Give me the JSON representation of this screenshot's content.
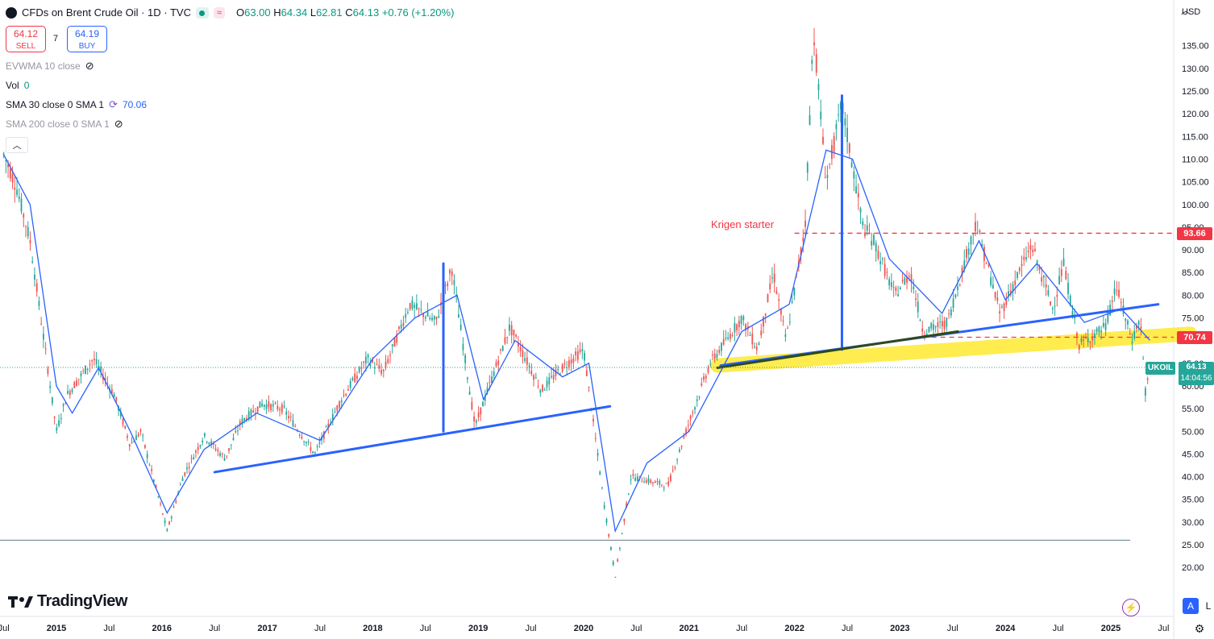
{
  "header": {
    "symbol_title": "CFDs on Brent Crude Oil · 1D · TVC",
    "ohlc": {
      "o_label": "O",
      "o": "63.00",
      "h_label": "H",
      "h": "64.34",
      "l_label": "L",
      "l": "62.81",
      "c_label": "C",
      "c": "64.13",
      "change": "+0.76 (+1.20%)"
    },
    "sell_price": "64.12",
    "sell_label": "SELL",
    "spread": "7",
    "buy_price": "64.19",
    "buy_label": "BUY"
  },
  "indicators": {
    "evwma": "EVWMA 10 close",
    "vol_label": "Vol",
    "vol_value": "0",
    "sma30": "SMA 30 close 0 SMA 1",
    "sma30_value": "70.06",
    "sma200": "SMA 200 close 0 SMA 1"
  },
  "currency": "USD",
  "annotation_text": "Krigen starter",
  "price_tags": {
    "resistance": "93.66",
    "support": "70.74",
    "symbol": "UKOIL",
    "last": "64.13",
    "countdown": "14:04:56"
  },
  "brand": "TradingView",
  "bottom_buttons": {
    "auto": "A",
    "log": "L"
  },
  "colors": {
    "up": "#26a69a",
    "down": "#ef5350",
    "sma": "#2962ff",
    "trend": "#2962ff",
    "highlight": "#ffeb3b",
    "dashed": "#f23645",
    "accent_red": "#f23645",
    "accent_blue": "#2962ff"
  },
  "chart_data": {
    "type": "candlestick",
    "title": "CFDs on Brent Crude Oil · 1D · TVC",
    "y_axis": {
      "side": "right",
      "unit": "USD",
      "range": [
        15,
        140
      ],
      "ticks": [
        20,
        25,
        30,
        35,
        40,
        45,
        50,
        55,
        60,
        65,
        70,
        75,
        80,
        85,
        90,
        95,
        100,
        105,
        110,
        115,
        120,
        125,
        130,
        135
      ]
    },
    "x_axis": {
      "range": [
        "2014-06",
        "2025-08"
      ],
      "ticks": [
        "Jul",
        "2015",
        "Jul",
        "2016",
        "Jul",
        "2017",
        "Jul",
        "2018",
        "Jul",
        "2019",
        "Jul",
        "2020",
        "Jul",
        "2021",
        "Jul",
        "2022",
        "Jul",
        "2023",
        "Jul",
        "2024",
        "Jul",
        "2025",
        "Jul"
      ]
    },
    "price_series": [
      {
        "t": 2014.5,
        "v": 111
      },
      {
        "t": 2014.62,
        "v": 104
      },
      {
        "t": 2014.75,
        "v": 92
      },
      {
        "t": 2014.87,
        "v": 72
      },
      {
        "t": 2015.0,
        "v": 50
      },
      {
        "t": 2015.1,
        "v": 58
      },
      {
        "t": 2015.35,
        "v": 66
      },
      {
        "t": 2015.55,
        "v": 58
      },
      {
        "t": 2015.7,
        "v": 47
      },
      {
        "t": 2015.8,
        "v": 50
      },
      {
        "t": 2015.95,
        "v": 37
      },
      {
        "t": 2016.05,
        "v": 28
      },
      {
        "t": 2016.2,
        "v": 40
      },
      {
        "t": 2016.4,
        "v": 49
      },
      {
        "t": 2016.6,
        "v": 44
      },
      {
        "t": 2016.75,
        "v": 52
      },
      {
        "t": 2016.95,
        "v": 56
      },
      {
        "t": 2017.15,
        "v": 55
      },
      {
        "t": 2017.45,
        "v": 45
      },
      {
        "t": 2017.7,
        "v": 57
      },
      {
        "t": 2017.95,
        "v": 66
      },
      {
        "t": 2018.1,
        "v": 63
      },
      {
        "t": 2018.35,
        "v": 78
      },
      {
        "t": 2018.6,
        "v": 74
      },
      {
        "t": 2018.75,
        "v": 86
      },
      {
        "t": 2018.97,
        "v": 51
      },
      {
        "t": 2019.3,
        "v": 73
      },
      {
        "t": 2019.6,
        "v": 59
      },
      {
        "t": 2019.75,
        "v": 63
      },
      {
        "t": 2020.0,
        "v": 68
      },
      {
        "t": 2020.2,
        "v": 33
      },
      {
        "t": 2020.3,
        "v": 18
      },
      {
        "t": 2020.45,
        "v": 40
      },
      {
        "t": 2020.8,
        "v": 38
      },
      {
        "t": 2021.0,
        "v": 52
      },
      {
        "t": 2021.2,
        "v": 65
      },
      {
        "t": 2021.5,
        "v": 75
      },
      {
        "t": 2021.65,
        "v": 68
      },
      {
        "t": 2021.8,
        "v": 85
      },
      {
        "t": 2021.92,
        "v": 70
      },
      {
        "t": 2022.1,
        "v": 95
      },
      {
        "t": 2022.18,
        "v": 139
      },
      {
        "t": 2022.3,
        "v": 105
      },
      {
        "t": 2022.45,
        "v": 122
      },
      {
        "t": 2022.65,
        "v": 95
      },
      {
        "t": 2022.75,
        "v": 92
      },
      {
        "t": 2022.95,
        "v": 80
      },
      {
        "t": 2023.1,
        "v": 85
      },
      {
        "t": 2023.22,
        "v": 72
      },
      {
        "t": 2023.45,
        "v": 74
      },
      {
        "t": 2023.72,
        "v": 96
      },
      {
        "t": 2023.95,
        "v": 76
      },
      {
        "t": 2024.25,
        "v": 91
      },
      {
        "t": 2024.45,
        "v": 77
      },
      {
        "t": 2024.55,
        "v": 87
      },
      {
        "t": 2024.7,
        "v": 69
      },
      {
        "t": 2024.95,
        "v": 73
      },
      {
        "t": 2025.05,
        "v": 82
      },
      {
        "t": 2025.2,
        "v": 70
      },
      {
        "t": 2025.28,
        "v": 75
      },
      {
        "t": 2025.33,
        "v": 58
      },
      {
        "t": 2025.37,
        "v": 64.13
      }
    ],
    "sma30_series": [
      {
        "t": 2014.5,
        "v": 111
      },
      {
        "t": 2014.75,
        "v": 100
      },
      {
        "t": 2015.0,
        "v": 60
      },
      {
        "t": 2015.15,
        "v": 54
      },
      {
        "t": 2015.4,
        "v": 64
      },
      {
        "t": 2015.7,
        "v": 50
      },
      {
        "t": 2016.05,
        "v": 32
      },
      {
        "t": 2016.4,
        "v": 46
      },
      {
        "t": 2016.9,
        "v": 54
      },
      {
        "t": 2017.5,
        "v": 48
      },
      {
        "t": 2018.0,
        "v": 66
      },
      {
        "t": 2018.4,
        "v": 75
      },
      {
        "t": 2018.8,
        "v": 80
      },
      {
        "t": 2019.05,
        "v": 57
      },
      {
        "t": 2019.35,
        "v": 70
      },
      {
        "t": 2019.8,
        "v": 62
      },
      {
        "t": 2020.05,
        "v": 65
      },
      {
        "t": 2020.3,
        "v": 28
      },
      {
        "t": 2020.6,
        "v": 43
      },
      {
        "t": 2021.0,
        "v": 50
      },
      {
        "t": 2021.5,
        "v": 72
      },
      {
        "t": 2021.95,
        "v": 78
      },
      {
        "t": 2022.3,
        "v": 112
      },
      {
        "t": 2022.55,
        "v": 110
      },
      {
        "t": 2022.9,
        "v": 88
      },
      {
        "t": 2023.4,
        "v": 76
      },
      {
        "t": 2023.75,
        "v": 92
      },
      {
        "t": 2024.0,
        "v": 79
      },
      {
        "t": 2024.3,
        "v": 87
      },
      {
        "t": 2024.75,
        "v": 74
      },
      {
        "t": 2025.1,
        "v": 77
      },
      {
        "t": 2025.37,
        "v": 70.06
      }
    ],
    "horizontal_levels": [
      {
        "value": 93.66,
        "style": "dashed",
        "from": 2022.0
      },
      {
        "value": 70.74,
        "style": "dashed",
        "from": 2023.3
      },
      {
        "value": 26.0,
        "style": "solid",
        "from": 2014.5
      }
    ],
    "trendlines": [
      {
        "from": [
          2016.5,
          41
        ],
        "to": [
          2020.25,
          55.5
        ],
        "color": "blue"
      },
      {
        "from": [
          2018.67,
          50
        ],
        "to": [
          2018.67,
          87
        ],
        "color": "blue"
      },
      {
        "from": [
          2021.3,
          64.5
        ],
        "to": [
          2025.45,
          78
        ],
        "color": "blue"
      },
      {
        "from": [
          2022.45,
          68
        ],
        "to": [
          2022.45,
          124
        ],
        "color": "blue"
      },
      {
        "from": [
          2021.27,
          64
        ],
        "to": [
          2023.55,
          72
        ],
        "color": "black",
        "highlighted": true
      }
    ],
    "highlight_band": {
      "from": [
        2021.27,
        64.5
      ],
      "to": [
        2025.75,
        71.5
      ]
    }
  }
}
